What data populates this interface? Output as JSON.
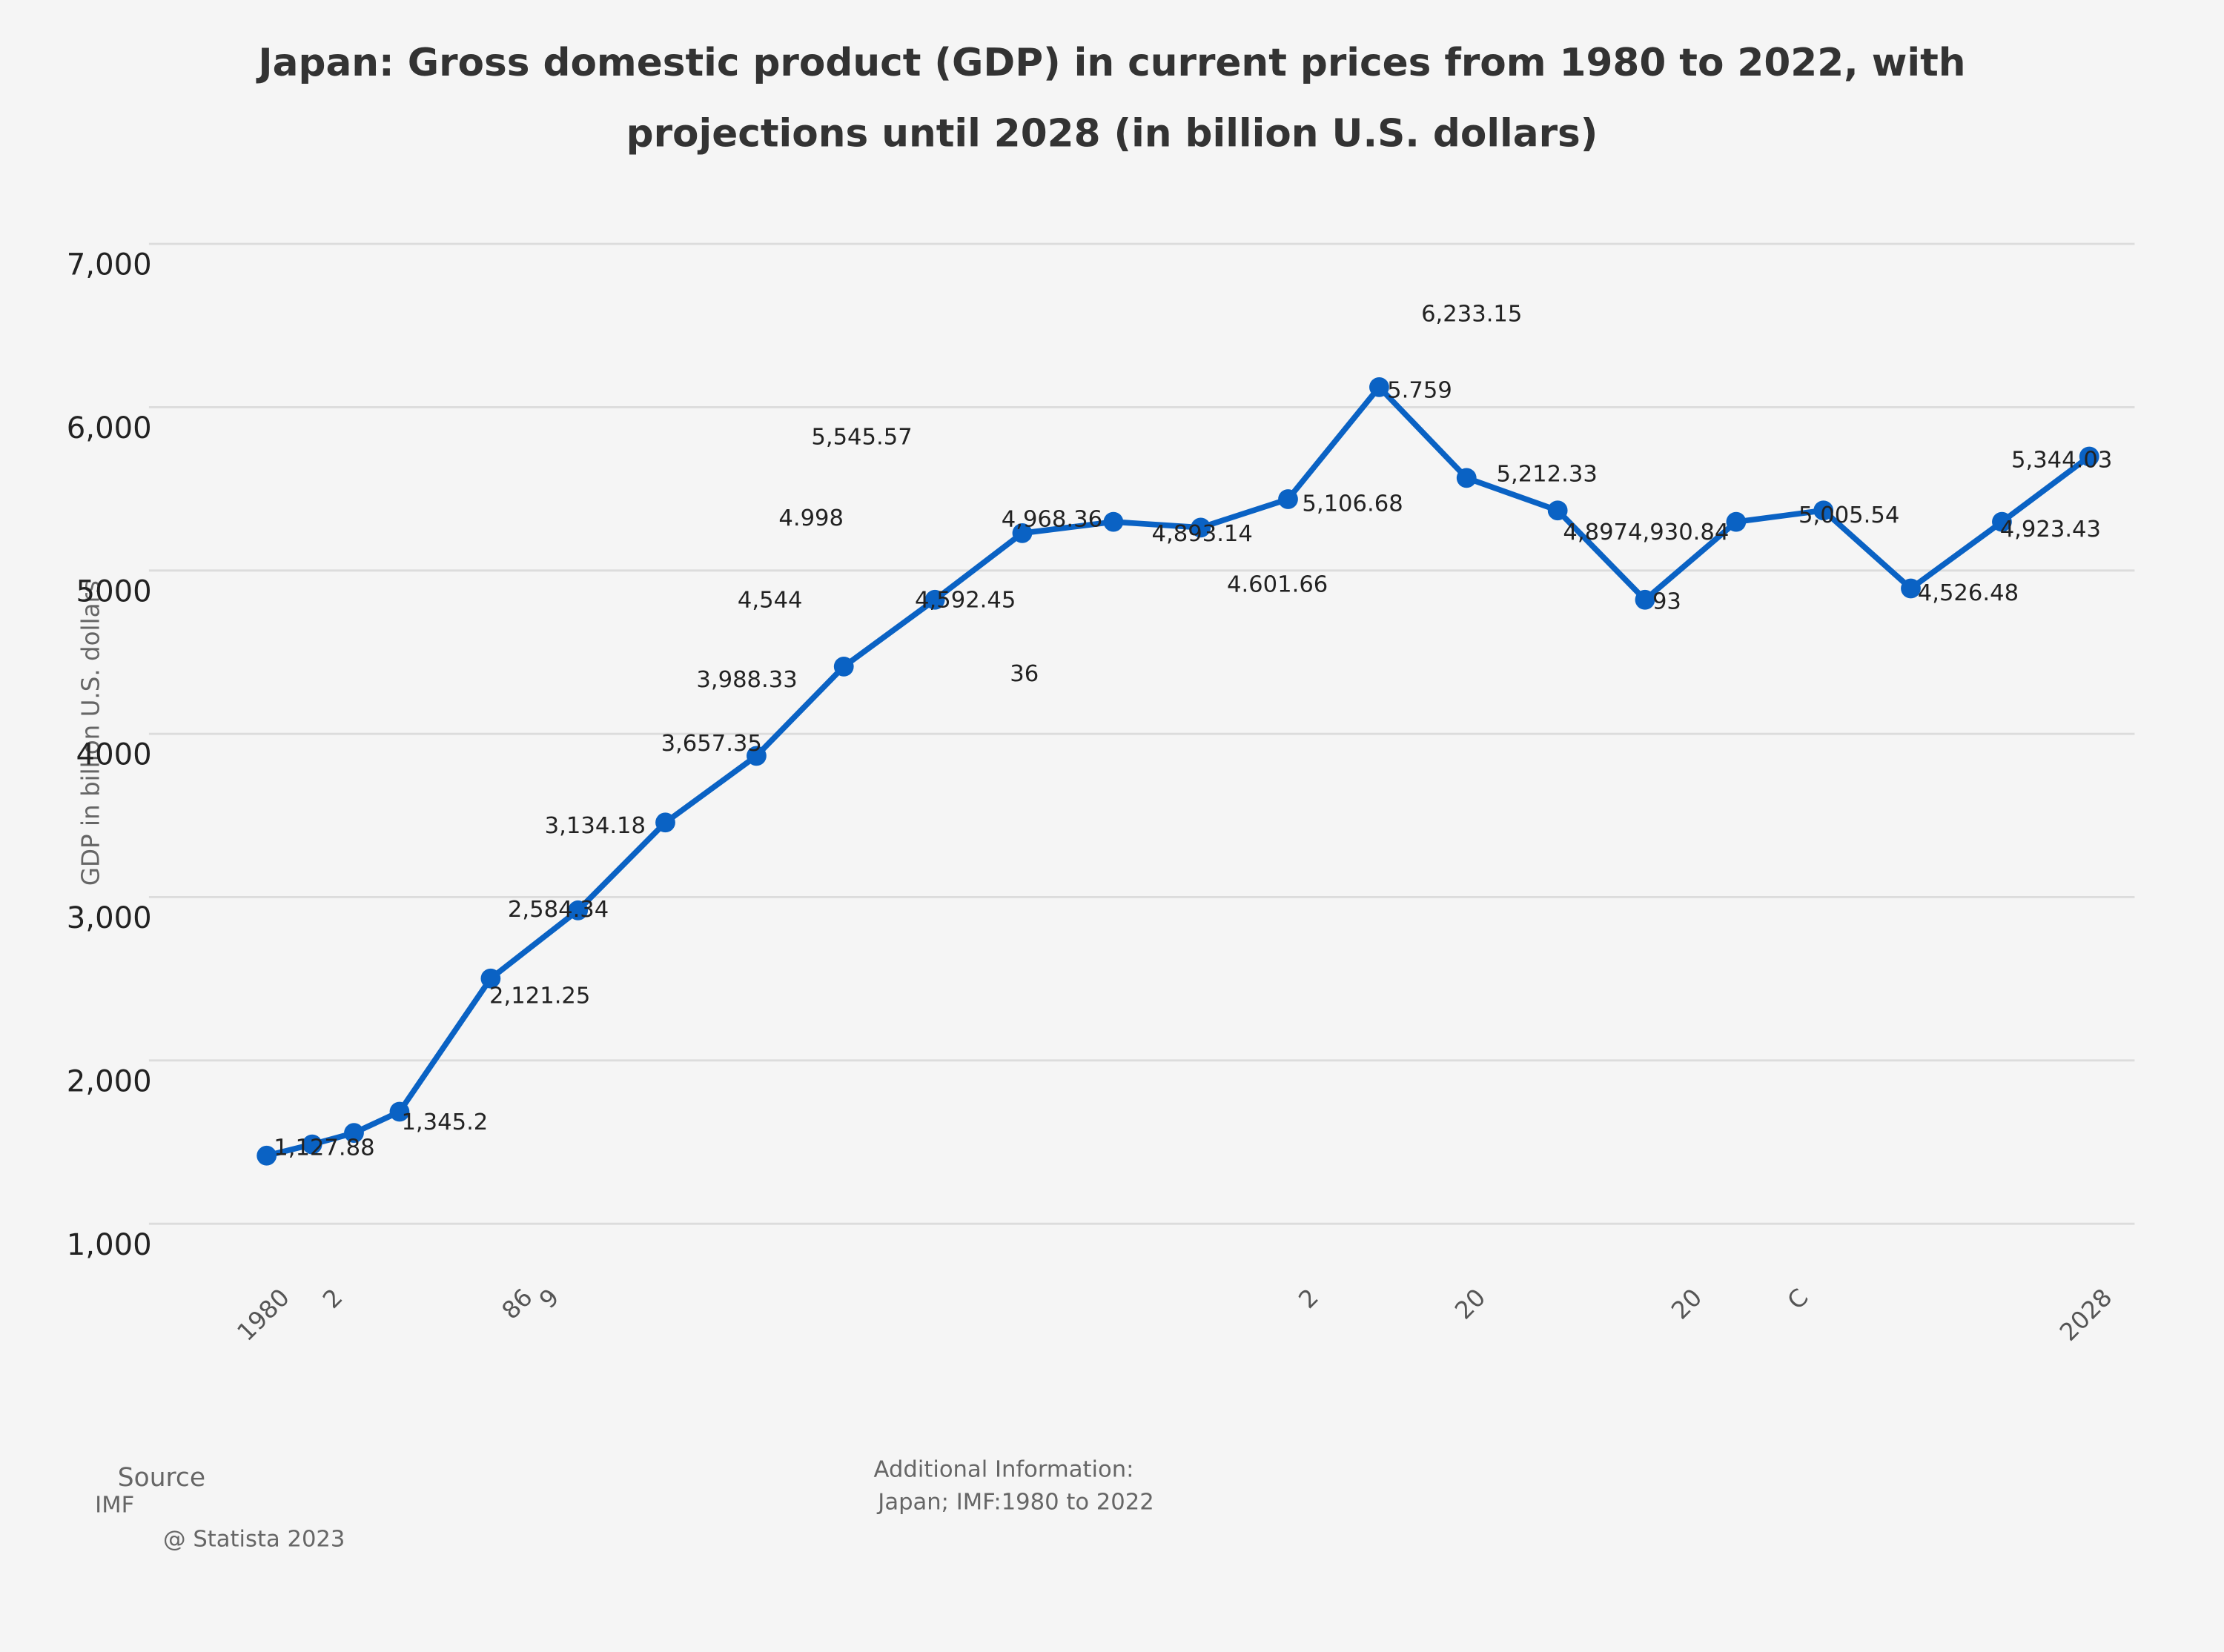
{
  "chart_data": {
    "type": "line",
    "title": [
      "Japan: Gross domestic product (GDP) in current prices from 1980 to 2022, with",
      "projections until 2028 (in billion U.S. dollars)"
    ],
    "y_label": "GDP in billion U.S. dollars",
    "x": [
      1980,
      1981.2,
      1982.3,
      1983.5,
      1985.9,
      1988.2,
      1990.5,
      1992.9,
      1995.2,
      1997.6,
      1999.9,
      2002.3,
      2004.6,
      2006.9,
      2009.3,
      2011.6,
      2014,
      2016.3,
      2018.7,
      2021,
      2023.3,
      2025.7,
      2028
    ],
    "series": [
      {
        "name": "GDP",
        "color": "#0a62c4",
        "values": [
          1417,
          1486,
          1556,
          1686,
          2502,
          2919,
          3457,
          3865,
          4412,
          4821,
          5229,
          5298,
          5263,
          5437,
          6123,
          5567,
          5368,
          4821,
          5298,
          5368,
          4890,
          5298,
          5698
        ]
      }
    ],
    "xlim": [
      1980,
      2028
    ],
    "xticks": [
      1980,
      {
        "value": 1981.4,
        "label": "2"
      },
      {
        "value": 1986.4,
        "label": "86"
      },
      {
        "value": 1987.1,
        "label": "9"
      },
      {
        "value": 2007.1,
        "label": "2"
      },
      {
        "value": 2011.5,
        "label": "20"
      },
      {
        "value": 2017.2,
        "label": "20"
      },
      {
        "value": 2020,
        "label": "C"
      },
      2028
    ],
    "ylim": [
      1000,
      7000
    ],
    "yticks": [
      {
        "value": 1000,
        "label": "1,000"
      },
      {
        "value": 2000,
        "label": "2,000"
      },
      {
        "value": 3000,
        "label": "3,000"
      },
      {
        "value": 4000,
        "label": "4000"
      },
      {
        "value": 5000,
        "label": "5000"
      },
      {
        "value": 6000,
        "label": "6,000"
      },
      {
        "value": 7000,
        "label": "7,000"
      }
    ],
    "grid": true,
    "annotations": [
      "1,127.88",
      "1,345.2",
      "2,121.25",
      "2,584.34",
      "3,134.18",
      "3,657.35",
      "3,988.33",
      "4,544",
      "4.998",
      "5,545.57",
      "4,592.45",
      "36",
      "4,968.36",
      "4,893.14",
      "4.601.66",
      "5,106.68",
      "6,233.15",
      "5.759",
      "5,212.33",
      "4,8974,930.84",
      "93",
      "5,005.54",
      "4,526.48",
      "4,923.43",
      "5,344.03"
    ],
    "source_title": "Source",
    "source": "IMF",
    "copyright": "@ Statista 2023",
    "additional_info_title": "Additional Information:",
    "additional_info": "Japan; IMF:1980 to 2022"
  }
}
